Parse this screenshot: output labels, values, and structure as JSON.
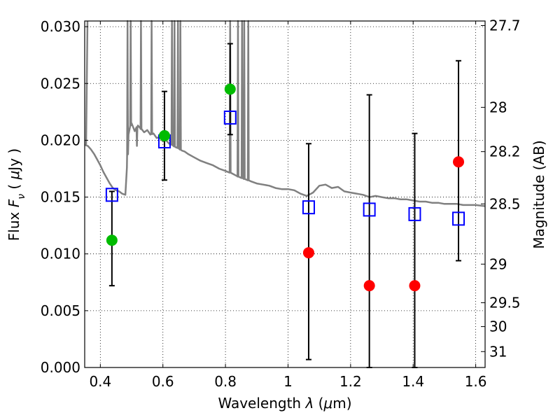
{
  "chart_data": {
    "type": "scatter",
    "xlabel": "Wavelength  λ (μm)",
    "ylabel": "Flux  Fν  ( μJy )",
    "y2label": "Magnitude (AB)",
    "xlim": [
      0.35,
      1.63
    ],
    "ylim": [
      0.0,
      0.0305
    ],
    "grid": true,
    "x_ticks": [
      {
        "value": 0.4,
        "label": "0.4"
      },
      {
        "value": 0.6,
        "label": "0.6"
      },
      {
        "value": 0.8,
        "label": "0.8"
      },
      {
        "value": 1.0,
        "label": "1"
      },
      {
        "value": 1.2,
        "label": "1.2"
      },
      {
        "value": 1.4,
        "label": "1.4"
      },
      {
        "value": 1.6,
        "label": "1.6"
      }
    ],
    "y_ticks": [
      {
        "value": 0.0,
        "label": "0.000"
      },
      {
        "value": 0.005,
        "label": "0.005"
      },
      {
        "value": 0.01,
        "label": "0.010"
      },
      {
        "value": 0.015,
        "label": "0.015"
      },
      {
        "value": 0.02,
        "label": "0.020"
      },
      {
        "value": 0.025,
        "label": "0.025"
      },
      {
        "value": 0.03,
        "label": "0.030"
      }
    ],
    "y2_ticks": [
      {
        "flux": 0.0301,
        "label": "27.7"
      },
      {
        "flux": 0.0229,
        "label": "28"
      },
      {
        "flux": 0.019,
        "label": "28.2"
      },
      {
        "flux": 0.0144,
        "label": "28.5"
      },
      {
        "flux": 0.0091,
        "label": "29"
      },
      {
        "flux": 0.0057,
        "label": "29.5"
      },
      {
        "flux": 0.0036,
        "label": "30"
      },
      {
        "flux": 0.0014,
        "label": "31"
      }
    ],
    "model_spectrum": {
      "color": "#808080",
      "x": [
        0.35,
        0.36,
        0.37,
        0.38,
        0.39,
        0.4,
        0.41,
        0.42,
        0.43,
        0.44,
        0.45,
        0.46,
        0.47,
        0.48,
        0.485,
        0.49,
        0.495,
        0.5,
        0.51,
        0.52,
        0.53,
        0.54,
        0.55,
        0.56,
        0.57,
        0.58,
        0.59,
        0.6,
        0.61,
        0.62,
        0.63,
        0.64,
        0.65,
        0.66,
        0.67,
        0.68,
        0.7,
        0.72,
        0.74,
        0.76,
        0.78,
        0.8,
        0.82,
        0.84,
        0.86,
        0.88,
        0.9,
        0.92,
        0.94,
        0.96,
        0.98,
        1.0,
        1.02,
        1.04,
        1.06,
        1.08,
        1.1,
        1.12,
        1.14,
        1.16,
        1.18,
        1.2,
        1.22,
        1.24,
        1.26,
        1.28,
        1.3,
        1.32,
        1.34,
        1.36,
        1.38,
        1.4,
        1.42,
        1.44,
        1.46,
        1.48,
        1.5,
        1.52,
        1.54,
        1.56,
        1.58,
        1.6,
        1.63
      ],
      "y": [
        0.0196,
        0.0195,
        0.0192,
        0.0188,
        0.0183,
        0.0178,
        0.0172,
        0.0167,
        0.0162,
        0.0158,
        0.0156,
        0.0155,
        0.0153,
        0.0152,
        0.0176,
        0.0205,
        0.0212,
        0.0215,
        0.0208,
        0.0213,
        0.021,
        0.0207,
        0.0209,
        0.0205,
        0.0206,
        0.0202,
        0.0203,
        0.0199,
        0.02,
        0.0197,
        0.0196,
        0.0194,
        0.0193,
        0.0191,
        0.019,
        0.0188,
        0.0185,
        0.0182,
        0.018,
        0.0178,
        0.0175,
        0.0173,
        0.0171,
        0.0168,
        0.0166,
        0.0164,
        0.0162,
        0.0161,
        0.016,
        0.0158,
        0.0157,
        0.0157,
        0.0156,
        0.0153,
        0.0151,
        0.0154,
        0.016,
        0.0161,
        0.0158,
        0.0159,
        0.0155,
        0.0154,
        0.0153,
        0.0152,
        0.015,
        0.0151,
        0.015,
        0.0149,
        0.0149,
        0.0148,
        0.0148,
        0.0147,
        0.0146,
        0.0146,
        0.0145,
        0.0145,
        0.0144,
        0.0144,
        0.0144,
        0.0143,
        0.0143,
        0.0143,
        0.0142
      ]
    },
    "emission_lines": [
      {
        "x": 0.487,
        "peak": 0.0305
      },
      {
        "x": 0.497,
        "peak": 0.0305
      },
      {
        "x": 0.517,
        "peak": 0.0195
      },
      {
        "x": 0.53,
        "peak": 0.0305
      },
      {
        "x": 0.564,
        "peak": 0.0305
      },
      {
        "x": 0.629,
        "peak": 0.0305
      },
      {
        "x": 0.637,
        "peak": 0.0305
      },
      {
        "x": 0.648,
        "peak": 0.0305
      },
      {
        "x": 0.656,
        "peak": 0.0305
      },
      {
        "x": 0.815,
        "peak": 0.0305
      },
      {
        "x": 0.84,
        "peak": 0.0305
      },
      {
        "x": 0.853,
        "peak": 0.0305
      },
      {
        "x": 0.86,
        "peak": 0.0305
      },
      {
        "x": 0.873,
        "peak": 0.0305
      }
    ],
    "series": [
      {
        "marker": "open-square",
        "color": "#0000ff",
        "x": [
          0.437,
          0.605,
          0.815,
          1.066,
          1.26,
          1.405,
          1.545
        ],
        "y": [
          0.0152,
          0.0199,
          0.022,
          0.0141,
          0.0139,
          0.0135,
          0.0131
        ],
        "err_low": [
          0.0072,
          0.0165,
          0.0205,
          0.0007,
          0.0,
          0.0,
          0.0094
        ],
        "err_high": [
          0.0155,
          0.0243,
          0.0285,
          0.0197,
          0.024,
          0.0206,
          0.027
        ]
      },
      {
        "marker": "filled-circle",
        "color": "#00bb00",
        "x": [
          0.437,
          0.605,
          0.815
        ],
        "y": [
          0.0112,
          0.0204,
          0.0245
        ]
      },
      {
        "marker": "filled-circle",
        "color": "#ff0000",
        "x": [
          1.066,
          1.26,
          1.405,
          1.545
        ],
        "y": [
          0.0101,
          0.0072,
          0.0072,
          0.0181
        ]
      }
    ]
  }
}
